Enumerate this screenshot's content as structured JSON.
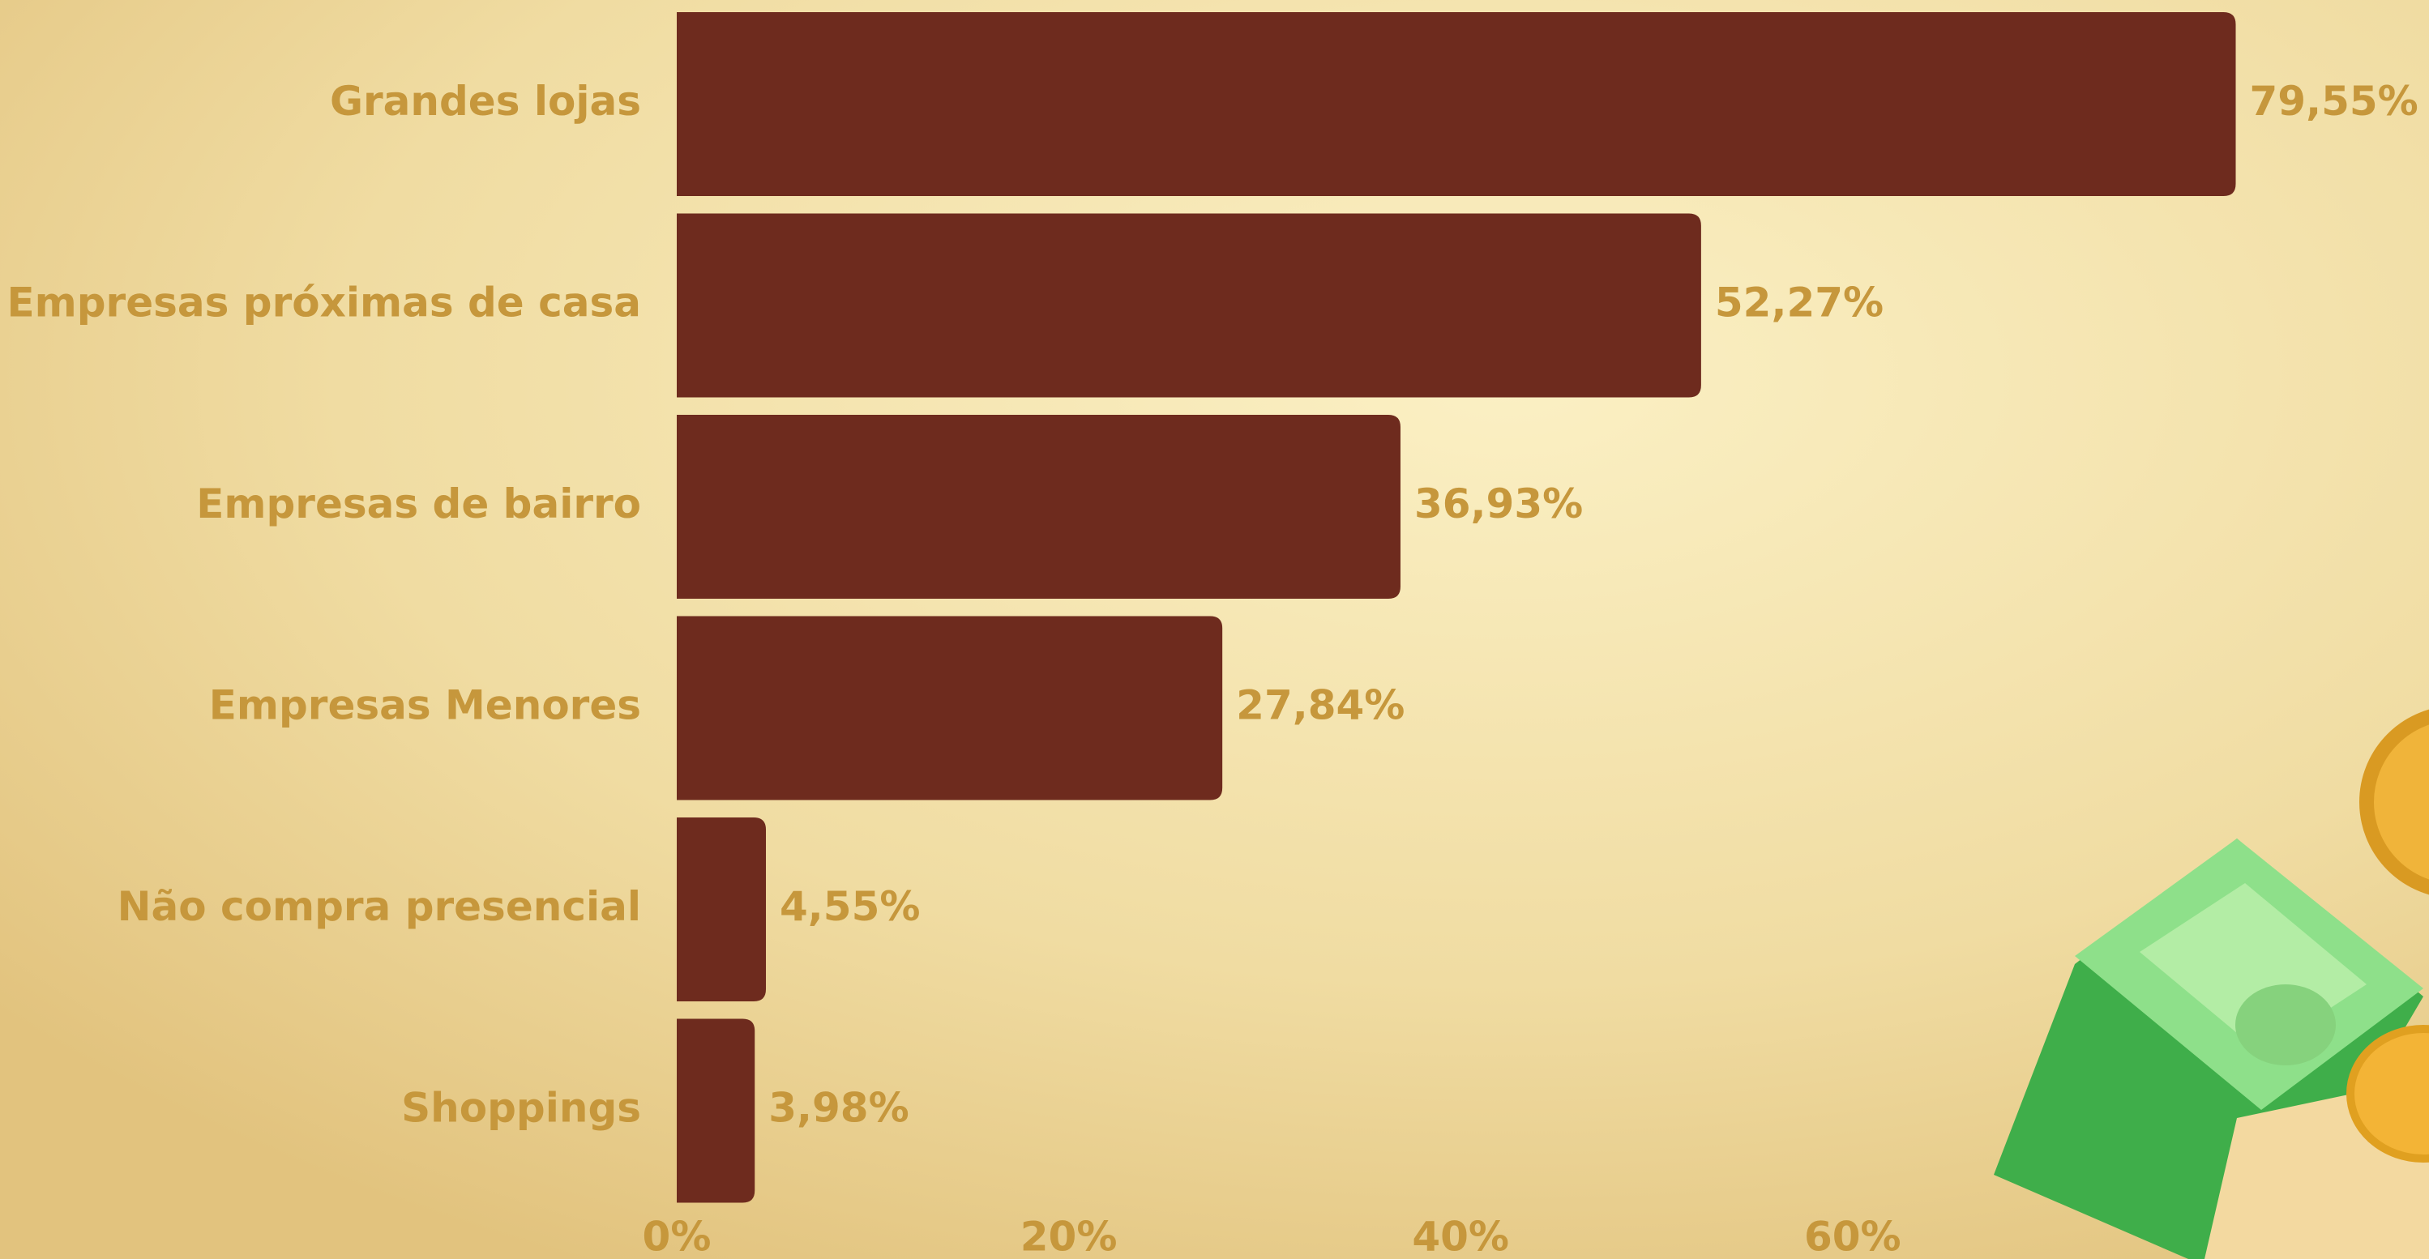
{
  "chart_data": {
    "type": "bar",
    "orientation": "horizontal",
    "categories": [
      "Grandes lojas",
      "Empresas próximas de casa",
      "Empresas de bairro",
      "Empresas Menores",
      "Não compra presencial",
      "Shoppings"
    ],
    "values": [
      79.55,
      52.27,
      36.93,
      27.84,
      4.55,
      3.98
    ],
    "value_labels": [
      "79,55%",
      "52,27%",
      "36,93%",
      "27,84%",
      "4,55%",
      "3,98%"
    ],
    "color": "#6e2b1e",
    "xlim": [
      0,
      80
    ],
    "xticks": [
      {
        "value": 0,
        "label": "0%"
      },
      {
        "value": 20,
        "label": "20%"
      },
      {
        "value": 40,
        "label": "40%"
      },
      {
        "value": 60,
        "label": "60%"
      }
    ]
  }
}
